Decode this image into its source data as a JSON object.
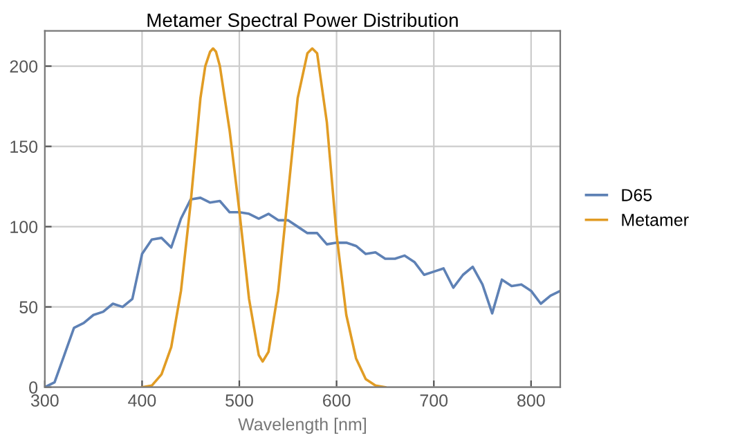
{
  "chart_data": {
    "type": "line",
    "title": "Metamer Spectral Power Distribution",
    "xlabel": "Wavelength [nm]",
    "xlim": [
      300,
      830
    ],
    "ylim": [
      0,
      222
    ],
    "xticks": [
      300,
      400,
      500,
      600,
      700,
      800
    ],
    "yticks": [
      0,
      50,
      100,
      150,
      200
    ],
    "grid": true,
    "legend": "right",
    "marker": "none",
    "line_style": "solid",
    "series": [
      {
        "name": "D65",
        "color": "#5e81b5",
        "x": [
          300,
          310,
          320,
          330,
          340,
          350,
          360,
          370,
          380,
          390,
          400,
          410,
          420,
          430,
          440,
          450,
          460,
          470,
          480,
          490,
          500,
          510,
          520,
          530,
          540,
          550,
          560,
          570,
          580,
          590,
          600,
          610,
          620,
          630,
          640,
          650,
          660,
          670,
          680,
          690,
          700,
          710,
          720,
          730,
          740,
          750,
          760,
          770,
          780,
          790,
          800,
          810,
          820,
          830
        ],
        "values": [
          0,
          3,
          20,
          37,
          40,
          45,
          47,
          52,
          50,
          55,
          83,
          92,
          93,
          87,
          105,
          117,
          118,
          115,
          116,
          109,
          109,
          108,
          105,
          108,
          104,
          104,
          100,
          96,
          96,
          89,
          90,
          90,
          88,
          83,
          84,
          80,
          80,
          82,
          78,
          70,
          72,
          74,
          62,
          70,
          75,
          64,
          46,
          67,
          63,
          64,
          60,
          52,
          57,
          60
        ]
      },
      {
        "name": "Metamer",
        "color": "#e19c24",
        "x": [
          400,
          410,
          420,
          430,
          440,
          450,
          460,
          465,
          470,
          473,
          476,
          480,
          490,
          500,
          510,
          520,
          524,
          530,
          540,
          550,
          560,
          570,
          575,
          580,
          590,
          600,
          610,
          620,
          630,
          640,
          650
        ],
        "values": [
          0,
          1,
          8,
          25,
          60,
          115,
          180,
          200,
          209,
          211,
          209,
          200,
          160,
          110,
          55,
          20,
          16,
          22,
          60,
          120,
          180,
          208,
          211,
          208,
          165,
          95,
          45,
          18,
          5,
          1,
          0
        ]
      }
    ]
  }
}
